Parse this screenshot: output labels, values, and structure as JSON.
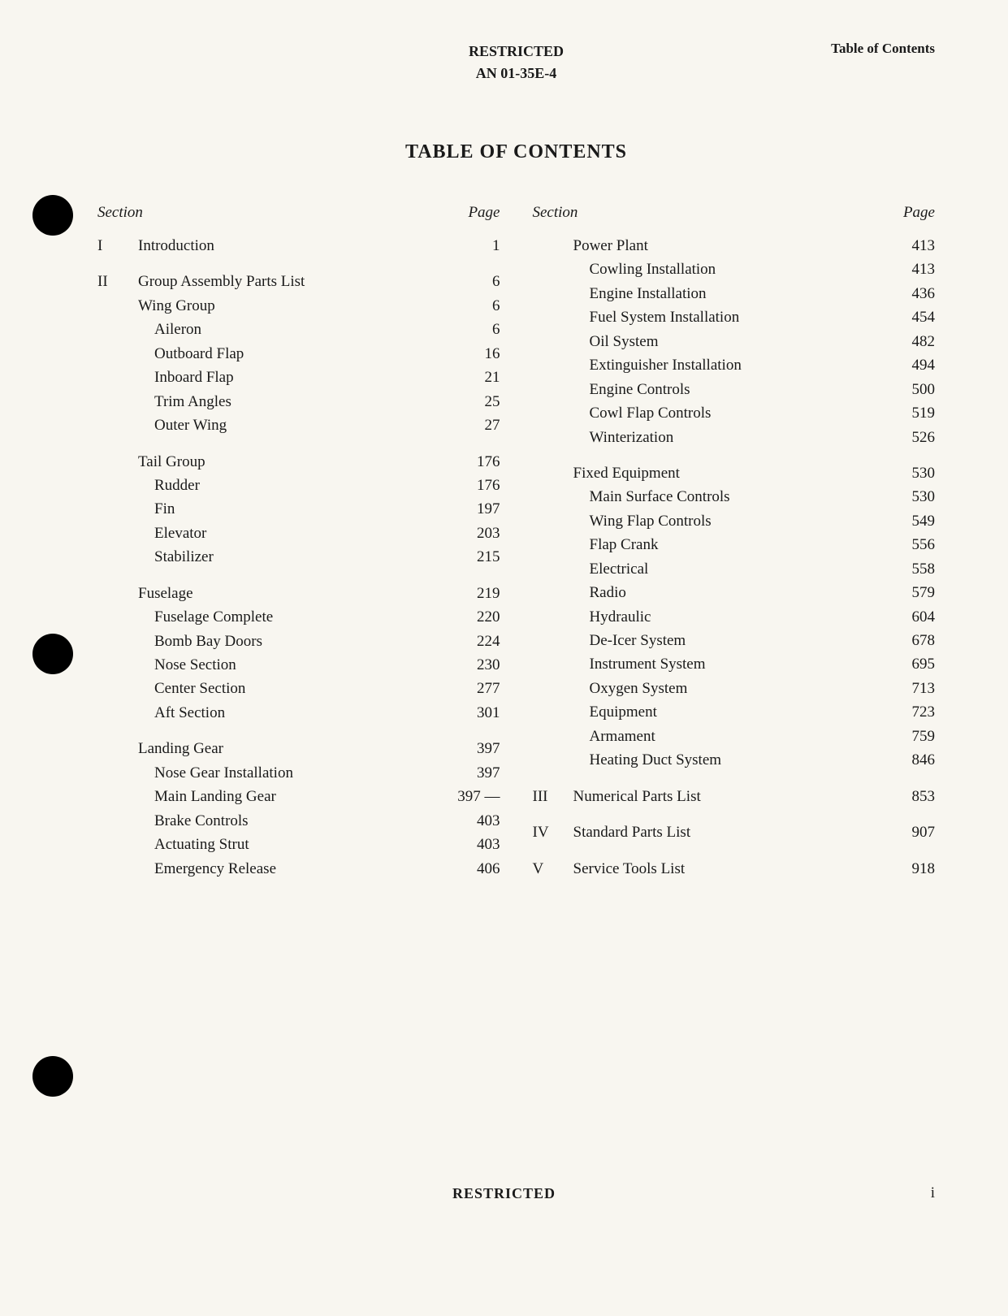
{
  "header": {
    "classification": "RESTRICTED",
    "doc_number": "AN 01-35E-4",
    "page_label": "Table of Contents"
  },
  "title": "TABLE OF CONTENTS",
  "column_headers": {
    "section": "Section",
    "page": "Page"
  },
  "left_column": [
    {
      "section": "I",
      "label": "Introduction",
      "page": "1",
      "level": 0,
      "gap": false
    },
    {
      "section": "II",
      "label": "Group Assembly Parts List",
      "page": "6",
      "level": 0,
      "gap": true
    },
    {
      "section": "",
      "label": "Wing Group",
      "page": "6",
      "level": 0,
      "gap": false
    },
    {
      "section": "",
      "label": "Aileron",
      "page": "6",
      "level": 1,
      "gap": false
    },
    {
      "section": "",
      "label": "Outboard Flap",
      "page": "16",
      "level": 1,
      "gap": false
    },
    {
      "section": "",
      "label": "Inboard Flap",
      "page": "21",
      "level": 1,
      "gap": false
    },
    {
      "section": "",
      "label": "Trim Angles",
      "page": "25",
      "level": 1,
      "gap": false
    },
    {
      "section": "",
      "label": "Outer Wing",
      "page": "27",
      "level": 1,
      "gap": false
    },
    {
      "section": "",
      "label": "Tail Group",
      "page": "176",
      "level": 0,
      "gap": true
    },
    {
      "section": "",
      "label": "Rudder",
      "page": "176",
      "level": 1,
      "gap": false
    },
    {
      "section": "",
      "label": "Fin",
      "page": "197",
      "level": 1,
      "gap": false
    },
    {
      "section": "",
      "label": "Elevator",
      "page": "203",
      "level": 1,
      "gap": false
    },
    {
      "section": "",
      "label": "Stabilizer",
      "page": "215",
      "level": 1,
      "gap": false
    },
    {
      "section": "",
      "label": "Fuselage",
      "page": "219",
      "level": 0,
      "gap": true
    },
    {
      "section": "",
      "label": "Fuselage Complete",
      "page": "220",
      "level": 1,
      "gap": false
    },
    {
      "section": "",
      "label": "Bomb Bay Doors",
      "page": "224",
      "level": 1,
      "gap": false
    },
    {
      "section": "",
      "label": "Nose Section",
      "page": "230",
      "level": 1,
      "gap": false
    },
    {
      "section": "",
      "label": "Center Section",
      "page": "277",
      "level": 1,
      "gap": false
    },
    {
      "section": "",
      "label": "Aft Section",
      "page": "301",
      "level": 1,
      "gap": false
    },
    {
      "section": "",
      "label": "Landing Gear",
      "page": "397",
      "level": 0,
      "gap": true
    },
    {
      "section": "",
      "label": "Nose Gear Installation",
      "page": "397",
      "level": 1,
      "gap": false
    },
    {
      "section": "",
      "label": "Main Landing Gear",
      "page": "397 —",
      "level": 1,
      "gap": false
    },
    {
      "section": "",
      "label": "Brake Controls",
      "page": "403",
      "level": 1,
      "gap": false
    },
    {
      "section": "",
      "label": "Actuating Strut",
      "page": "403",
      "level": 1,
      "gap": false
    },
    {
      "section": "",
      "label": "Emergency Release",
      "page": "406",
      "level": 1,
      "gap": false
    }
  ],
  "right_column": [
    {
      "section": "",
      "label": "Power Plant",
      "page": "413",
      "level": 0,
      "gap": false
    },
    {
      "section": "",
      "label": "Cowling Installation",
      "page": "413",
      "level": 1,
      "gap": false
    },
    {
      "section": "",
      "label": "Engine Installation",
      "page": "436",
      "level": 1,
      "gap": false
    },
    {
      "section": "",
      "label": "Fuel System Installation",
      "page": "454",
      "level": 1,
      "gap": false
    },
    {
      "section": "",
      "label": "Oil System",
      "page": "482",
      "level": 1,
      "gap": false
    },
    {
      "section": "",
      "label": "Extinguisher Installation",
      "page": "494",
      "level": 1,
      "gap": false
    },
    {
      "section": "",
      "label": "Engine Controls",
      "page": "500",
      "level": 1,
      "gap": false
    },
    {
      "section": "",
      "label": "Cowl Flap Controls",
      "page": "519",
      "level": 1,
      "gap": false
    },
    {
      "section": "",
      "label": "Winterization",
      "page": "526",
      "level": 1,
      "gap": false
    },
    {
      "section": "",
      "label": "Fixed Equipment",
      "page": "530",
      "level": 0,
      "gap": true
    },
    {
      "section": "",
      "label": "Main Surface Controls",
      "page": "530",
      "level": 1,
      "gap": false
    },
    {
      "section": "",
      "label": "Wing Flap Controls",
      "page": "549",
      "level": 1,
      "gap": false
    },
    {
      "section": "",
      "label": "Flap Crank",
      "page": "556",
      "level": 1,
      "gap": false
    },
    {
      "section": "",
      "label": "Electrical",
      "page": "558",
      "level": 1,
      "gap": false
    },
    {
      "section": "",
      "label": "Radio",
      "page": "579",
      "level": 1,
      "gap": false
    },
    {
      "section": "",
      "label": "Hydraulic",
      "page": "604",
      "level": 1,
      "gap": false
    },
    {
      "section": "",
      "label": "De-Icer System",
      "page": "678",
      "level": 1,
      "gap": false
    },
    {
      "section": "",
      "label": "Instrument System",
      "page": "695",
      "level": 1,
      "gap": false
    },
    {
      "section": "",
      "label": "Oxygen System",
      "page": "713",
      "level": 1,
      "gap": false
    },
    {
      "section": "",
      "label": "Equipment",
      "page": "723",
      "level": 1,
      "gap": false
    },
    {
      "section": "",
      "label": "Armament",
      "page": "759",
      "level": 1,
      "gap": false
    },
    {
      "section": "",
      "label": "Heating Duct System",
      "page": "846",
      "level": 1,
      "gap": false
    },
    {
      "section": "III",
      "label": "Numerical Parts List",
      "page": "853",
      "level": 0,
      "gap": true
    },
    {
      "section": "IV",
      "label": "Standard Parts List",
      "page": "907",
      "level": 0,
      "gap": true
    },
    {
      "section": "V",
      "label": "Service Tools List",
      "page": "918",
      "level": 0,
      "gap": true
    }
  ],
  "footer": {
    "classification": "RESTRICTED",
    "page_number": "i"
  }
}
